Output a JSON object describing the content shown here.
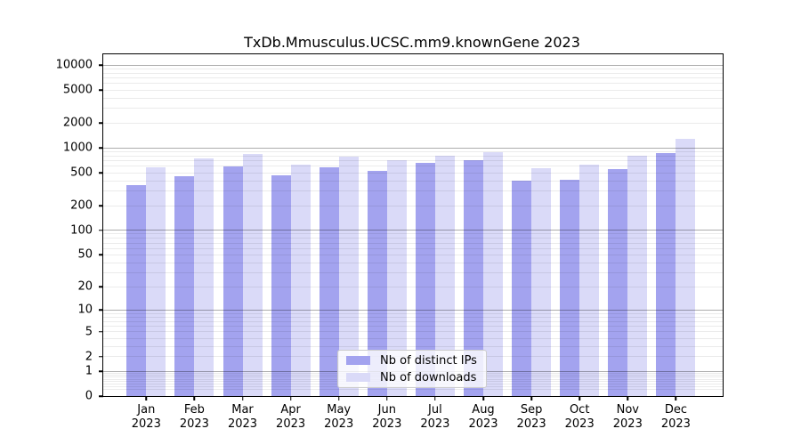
{
  "chart_data": {
    "type": "bar",
    "title": "TxDb.Mmusculus.UCSC.mm9.knownGene 2023",
    "categories": [
      "Jan 2023",
      "Feb 2023",
      "Mar 2023",
      "Apr 2023",
      "May 2023",
      "Jun 2023",
      "Jul 2023",
      "Aug 2023",
      "Sep 2023",
      "Oct 2023",
      "Nov 2023",
      "Dec 2023"
    ],
    "x_months": [
      "Jan",
      "Feb",
      "Mar",
      "Apr",
      "May",
      "Jun",
      "Jul",
      "Aug",
      "Sep",
      "Oct",
      "Nov",
      "Dec"
    ],
    "x_year": "2023",
    "series": [
      {
        "name": "Nb of distinct IPs",
        "color": "#a3a3ef",
        "values": [
          354,
          451,
          590,
          469,
          587,
          533,
          655,
          703,
          398,
          414,
          552,
          874
        ]
      },
      {
        "name": "Nb of downloads",
        "color": "#dadaf8",
        "values": [
          585,
          752,
          842,
          624,
          782,
          717,
          812,
          896,
          573,
          624,
          798,
          1300
        ]
      }
    ],
    "yscale": "log10(value+1)",
    "y_tick_values": [
      10000,
      5000,
      2000,
      1000,
      500,
      200,
      100,
      50,
      20,
      10,
      5,
      2,
      1,
      0
    ],
    "ylim": [
      0,
      13600
    ],
    "grid": "horizontal",
    "grid_major_at": [
      1,
      10,
      100,
      1000,
      10000
    ],
    "legend_position": "inside-bottom-center",
    "bar_edge": "none"
  }
}
